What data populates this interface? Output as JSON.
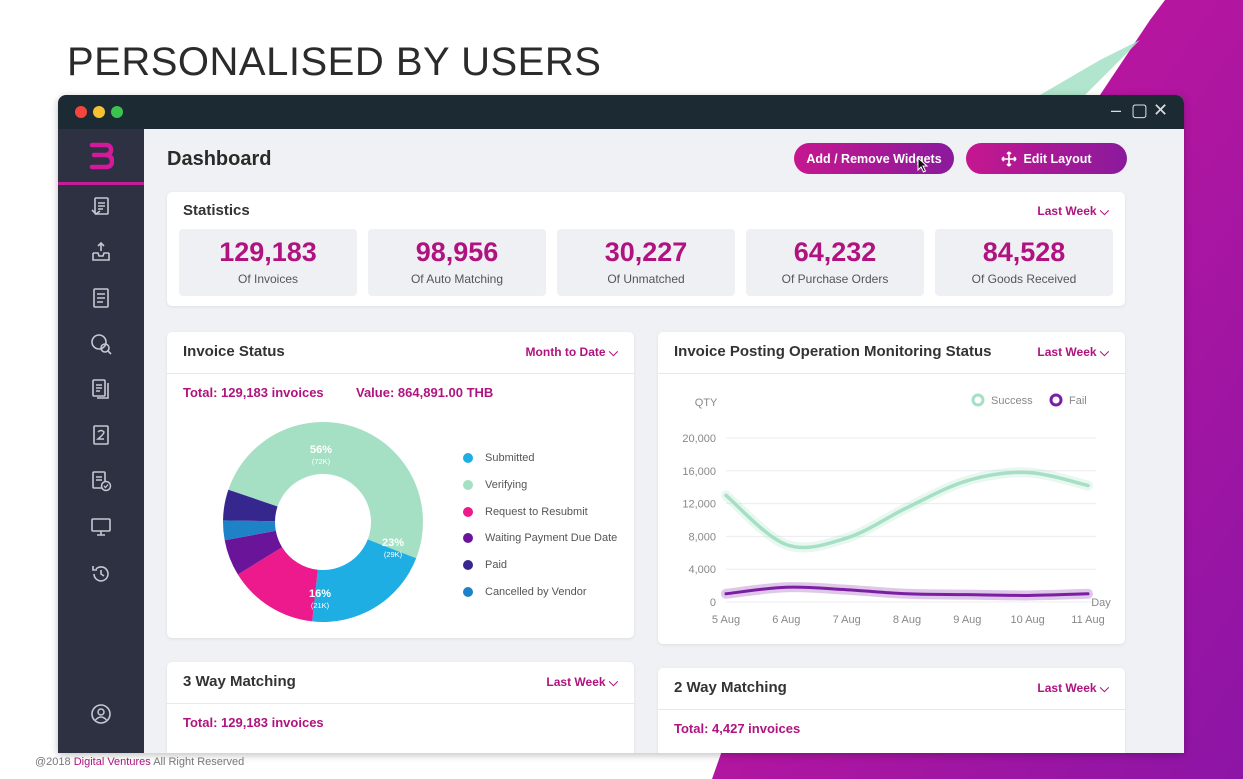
{
  "slide": {
    "title": "PERSONALISED BY USERS",
    "footer_prefix": "@2018 ",
    "footer_brand": "Digital Ventures",
    "footer_suffix": " All Right Reserved"
  },
  "window": {
    "controls": [
      "–",
      "▢",
      "✕"
    ]
  },
  "sidebar": {
    "items": [
      {
        "icon": "invoice-list-icon"
      },
      {
        "icon": "inbox-upload-icon"
      },
      {
        "icon": "document-icon"
      },
      {
        "icon": "payment-search-icon"
      },
      {
        "icon": "documents-stack-icon"
      },
      {
        "icon": "numbered-doc-icon"
      },
      {
        "icon": "doc-check-icon"
      },
      {
        "icon": "monitor-icon"
      },
      {
        "icon": "history-icon"
      },
      {
        "icon": "user-profile-icon"
      }
    ]
  },
  "header": {
    "title": "Dashboard",
    "add_remove_label": "Add / Remove Widgets",
    "edit_layout_label": "Edit Layout"
  },
  "statistics": {
    "title": "Statistics",
    "filter": "Last Week",
    "items": [
      {
        "value": "129,183",
        "label": "Of Invoices"
      },
      {
        "value": "98,956",
        "label": "Of Auto Matching"
      },
      {
        "value": "30,227",
        "label": "Of Unmatched"
      },
      {
        "value": "64,232",
        "label": "Of Purchase Orders"
      },
      {
        "value": "84,528",
        "label": "Of Goods Received"
      }
    ]
  },
  "invoice_status": {
    "title": "Invoice Status",
    "filter": "Month to Date",
    "total": "Total: 129,183 invoices",
    "value": "Value: 864,891.00 THB",
    "slice_labels": [
      {
        "pct": "56%",
        "count": "(72K)"
      },
      {
        "pct": "23%",
        "count": "(29K)"
      },
      {
        "pct": "16%",
        "count": "(21K)"
      }
    ],
    "legend": [
      {
        "label": "Submitted",
        "color": "#1eaee4"
      },
      {
        "label": "Verifying",
        "color": "#a5e0c4"
      },
      {
        "label": "Request to Resubmit",
        "color": "#ec1a8c"
      },
      {
        "label": "Waiting Payment Due Date",
        "color": "#6a1599"
      },
      {
        "label": "Paid",
        "color": "#36278f"
      },
      {
        "label": "Cancelled by Vendor",
        "color": "#1e83c6"
      }
    ]
  },
  "posting_status": {
    "title": "Invoice Posting Operation Monitoring Status",
    "filter": "Last Week"
  },
  "three_way": {
    "title": "3 Way Matching",
    "filter": "Last Week",
    "total": "Total: 129,183 invoices"
  },
  "two_way": {
    "title": "2 Way Matching",
    "filter": "Last Week",
    "total": "Total: 4,427 invoices"
  },
  "chart_data": [
    {
      "type": "pie",
      "title": "Invoice Status",
      "slices": [
        {
          "name": "Verifying",
          "value": 56,
          "color": "#a5e0c4"
        },
        {
          "name": "Submitted",
          "value": 23,
          "color": "#1eaee4"
        },
        {
          "name": "Request to Resubmit",
          "value": 16,
          "color": "#ec1a8c"
        },
        {
          "name": "Waiting Payment Due Date",
          "value": 6.5,
          "color": "#6a1599"
        },
        {
          "name": "Cancelled by Vendor",
          "value": 3.5,
          "color": "#1e83c6"
        },
        {
          "name": "Paid",
          "value": 5.5,
          "color": "#36278f"
        }
      ]
    },
    {
      "type": "line",
      "title": "Invoice Posting Operation Monitoring Status",
      "ylabel": "QTY",
      "xlabel": "Day",
      "ylim": [
        0,
        20000
      ],
      "yticks": [
        "20,000",
        "16,000",
        "12,000",
        "8,000",
        "4,000",
        "0"
      ],
      "categories": [
        "5 Aug",
        "6 Aug",
        "7 Aug",
        "8 Aug",
        "9 Aug",
        "10 Aug",
        "11 Aug"
      ],
      "series": [
        {
          "name": "Success",
          "color": "#a5e0c4",
          "values": [
            13000,
            7000,
            7800,
            11500,
            14800,
            15800,
            14200
          ]
        },
        {
          "name": "Fail",
          "color": "#7b1fa2",
          "values": [
            1000,
            1800,
            1500,
            1000,
            900,
            800,
            1000
          ]
        }
      ],
      "legend": "top-right",
      "grid": true
    }
  ]
}
